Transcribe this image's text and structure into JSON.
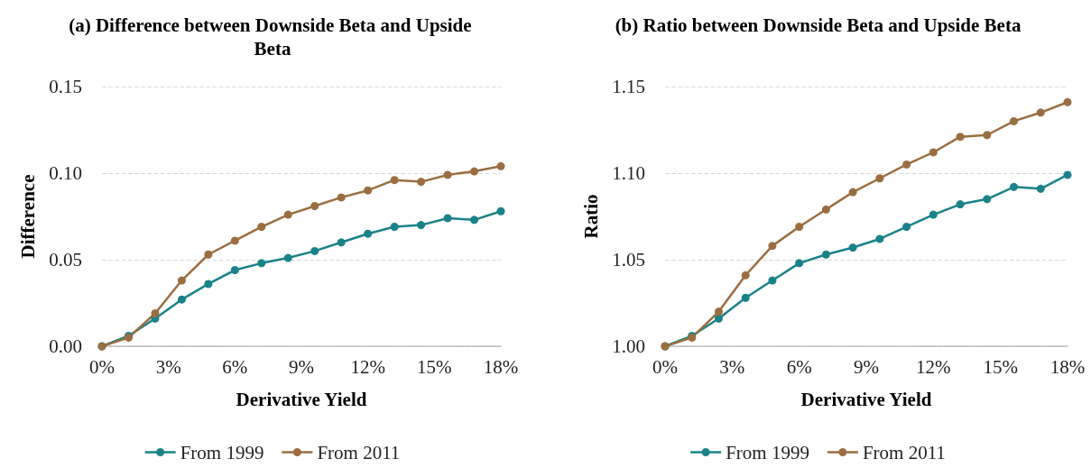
{
  "chart_data": [
    {
      "type": "line",
      "title": "(a) Difference between Downside Beta and Upside Beta",
      "xlabel": "Derivative Yield",
      "ylabel": "Difference",
      "x": [
        0,
        1.2,
        2.4,
        3.6,
        4.8,
        6,
        7.2,
        8.4,
        9.6,
        10.8,
        12,
        13.2,
        14.4,
        15.6,
        16.8,
        18
      ],
      "series": [
        {
          "name": "From 1999",
          "color": "#1a8289",
          "values": [
            0,
            0.006,
            0.016,
            0.027,
            0.036,
            0.044,
            0.048,
            0.051,
            0.055,
            0.06,
            0.065,
            0.069,
            0.07,
            0.074,
            0.073,
            0.078
          ]
        },
        {
          "name": "From 2011",
          "color": "#9a6e40",
          "values": [
            0,
            0.005,
            0.019,
            0.038,
            0.053,
            0.061,
            0.069,
            0.076,
            0.081,
            0.086,
            0.09,
            0.096,
            0.095,
            0.099,
            0.101,
            0.104
          ]
        }
      ],
      "xlim": [
        0,
        18
      ],
      "xticks": [
        {
          "value": 0,
          "label": "0%"
        },
        {
          "value": 3,
          "label": "3%"
        },
        {
          "value": 6,
          "label": "6%"
        },
        {
          "value": 9,
          "label": "9%"
        },
        {
          "value": 12,
          "label": "12%"
        },
        {
          "value": 15,
          "label": "15%"
        },
        {
          "value": 18,
          "label": "18%"
        }
      ],
      "ylim": [
        0,
        0.15
      ],
      "yticks": [
        {
          "value": 0,
          "label": "0.00"
        },
        0.05,
        {
          "value": 0.1,
          "label": "0.10"
        },
        0.15
      ],
      "grid": "y",
      "legend": "bottom",
      "marker": "circle",
      "line_style": "solid"
    },
    {
      "type": "line",
      "title": "(b) Ratio between Downside Beta and Upside Beta",
      "xlabel": "Derivative Yield",
      "ylabel": "Ratio",
      "x": [
        0,
        1.2,
        2.4,
        3.6,
        4.8,
        6,
        7.2,
        8.4,
        9.6,
        10.8,
        12,
        13.2,
        14.4,
        15.6,
        16.8,
        18
      ],
      "series": [
        {
          "name": "From 1999",
          "color": "#1a8289",
          "values": [
            1.0,
            1.006,
            1.016,
            1.028,
            1.038,
            1.048,
            1.053,
            1.057,
            1.062,
            1.069,
            1.076,
            1.082,
            1.085,
            1.092,
            1.091,
            1.099
          ]
        },
        {
          "name": "From 2011",
          "color": "#9a6e40",
          "values": [
            1.0,
            1.005,
            1.02,
            1.041,
            1.058,
            1.069,
            1.079,
            1.089,
            1.097,
            1.105,
            1.112,
            1.121,
            1.122,
            1.13,
            1.135,
            1.141
          ]
        }
      ],
      "xlim": [
        0,
        18
      ],
      "xticks": [
        {
          "value": 0,
          "label": "0%"
        },
        {
          "value": 3,
          "label": "3%"
        },
        {
          "value": 6,
          "label": "6%"
        },
        {
          "value": 9,
          "label": "9%"
        },
        {
          "value": 12,
          "label": "12%"
        },
        {
          "value": 15,
          "label": "15%"
        },
        {
          "value": 18,
          "label": "18%"
        }
      ],
      "ylim": [
        1,
        1.15
      ],
      "yticks": [
        {
          "value": 1,
          "label": "1.00"
        },
        1.05,
        {
          "value": 1.1,
          "label": "1.10"
        },
        1.15
      ],
      "grid": "y",
      "legend": "bottom",
      "marker": "circle",
      "line_style": "solid"
    }
  ]
}
